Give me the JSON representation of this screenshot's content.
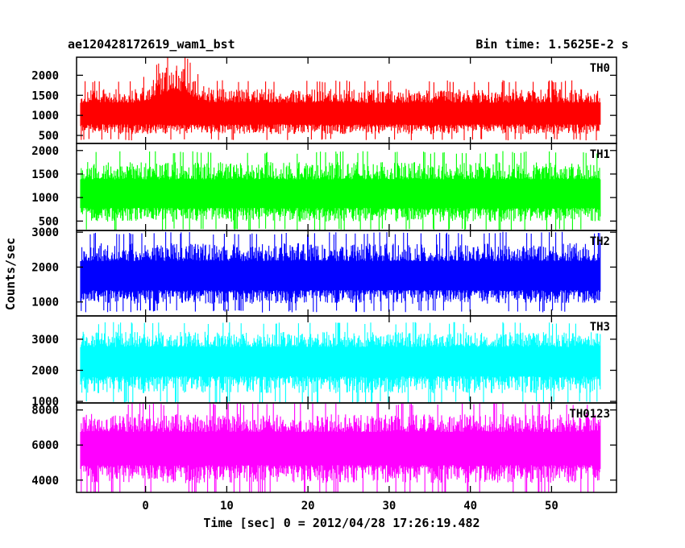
{
  "chart_data": {
    "type": "line",
    "title_left": "ae120428172619_wam1_bst",
    "title_right": "Bin time: 1.5625E-2 s",
    "xlabel": "Time [sec] 0 = 2012/04/28 17:26:19.482",
    "ylabel": "Counts/sec",
    "xlim": [
      -8.5,
      58
    ],
    "data_x_range": [
      -8,
      56
    ],
    "xticks": [
      0,
      10,
      20,
      30,
      40,
      50
    ],
    "xtick_labels": [
      "0",
      "10",
      "20",
      "30",
      "40",
      "50"
    ],
    "grid": false,
    "panels": [
      {
        "name": "TH0",
        "color": "#ff0000",
        "ylim": [
          300,
          2450
        ],
        "yticks": [
          500,
          1000,
          1500,
          2000
        ],
        "ytick_labels": [
          "500",
          "1000",
          "1500",
          "2000"
        ],
        "baseline": 1000,
        "lower_spikes": 500,
        "upper_spikes": 1700,
        "burst": {
          "center": 3.5,
          "width": 2.5,
          "peak": 2400
        }
      },
      {
        "name": "TH1",
        "color": "#00ff00",
        "ylim": [
          300,
          2150
        ],
        "yticks": [
          500,
          1000,
          1500,
          2000
        ],
        "ytick_labels": [
          "500",
          "1000",
          "1500",
          "2000"
        ],
        "baseline": 1050,
        "lower_spikes": 450,
        "upper_spikes": 1800
      },
      {
        "name": "TH2",
        "color": "#0000ff",
        "ylim": [
          600,
          3050
        ],
        "yticks": [
          1000,
          2000,
          3000
        ],
        "ytick_labels": [
          "1000",
          "2000",
          "3000"
        ],
        "baseline": 1700,
        "lower_spikes": 900,
        "upper_spikes": 2750
      },
      {
        "name": "TH3",
        "color": "#00ffff",
        "ylim": [
          950,
          3750
        ],
        "yticks": [
          1000,
          2000,
          3000
        ],
        "ytick_labels": [
          "1000",
          "2000",
          "3000"
        ],
        "baseline": 2300,
        "lower_spikes": 1200,
        "upper_spikes": 3300
      },
      {
        "name": "TH0123",
        "color": "#ff00ff",
        "ylim": [
          3300,
          8400
        ],
        "yticks": [
          4000,
          6000,
          8000
        ],
        "ytick_labels": [
          "4000",
          "6000",
          "8000"
        ],
        "baseline": 5800,
        "lower_spikes": 3700,
        "upper_spikes": 7900
      }
    ]
  }
}
